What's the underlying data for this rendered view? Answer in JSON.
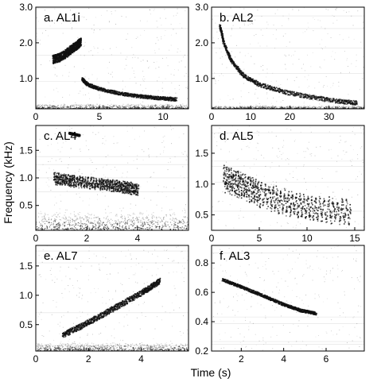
{
  "figure": {
    "ylabel": "Frequency (kHz)",
    "xlabel": "Time (s)"
  },
  "panels": [
    {
      "label": "a. AL1i",
      "xticks": [
        "0",
        "5",
        "10"
      ],
      "xtick_values": [
        0,
        5,
        10
      ],
      "yticks": [
        "1.0",
        "2.0",
        "3.0"
      ],
      "ytick_values": [
        1.0,
        2.0,
        3.0
      ],
      "xlim": [
        0,
        12
      ],
      "ylim": [
        0.15,
        3.0
      ],
      "traces": [
        {
          "kind": "tonal",
          "points": [
            [
              1.3,
              1.55
            ],
            [
              1.8,
              1.6
            ],
            [
              2.3,
              1.7
            ],
            [
              2.8,
              1.85
            ],
            [
              3.2,
              1.95
            ],
            [
              3.5,
              2.05
            ]
          ],
          "width": 0.3
        },
        {
          "kind": "tonal",
          "points": [
            [
              3.6,
              1.0
            ],
            [
              4.0,
              0.85
            ],
            [
              5.0,
              0.72
            ],
            [
              6.5,
              0.6
            ],
            [
              8.0,
              0.52
            ],
            [
              9.5,
              0.47
            ],
            [
              11.0,
              0.43
            ]
          ],
          "width": 0.12
        }
      ],
      "noise_band": [
        0.15,
        0.3
      ]
    },
    {
      "label": "b. AL2",
      "xticks": [
        "0",
        "10",
        "20",
        "30"
      ],
      "xtick_values": [
        0,
        10,
        20,
        30
      ],
      "yticks": [
        "1.0",
        "2.0",
        "3.0"
      ],
      "ytick_values": [
        1.0,
        2.0,
        3.0
      ],
      "xlim": [
        0,
        39
      ],
      "ylim": [
        0.15,
        3.0
      ],
      "traces": [
        {
          "kind": "tonal",
          "points": [
            [
              2,
              2.5
            ],
            [
              3,
              2.0
            ],
            [
              5,
              1.5
            ],
            [
              8,
              1.1
            ],
            [
              12,
              0.85
            ],
            [
              18,
              0.65
            ],
            [
              25,
              0.5
            ],
            [
              32,
              0.38
            ],
            [
              37,
              0.33
            ]
          ],
          "width": 0.15
        }
      ],
      "noise_band": [
        0.15,
        0.25
      ]
    },
    {
      "label": "c. AL4",
      "xticks": [
        "0",
        "2",
        "4"
      ],
      "xtick_values": [
        0,
        2,
        4
      ],
      "yticks": [
        "0.5",
        "1.0",
        "1.5"
      ],
      "ytick_values": [
        0.5,
        1.0,
        1.5
      ],
      "xlim": [
        0,
        6
      ],
      "ylim": [
        0.05,
        1.95
      ],
      "traces": [
        {
          "kind": "pulsed",
          "points": [
            [
              0.7,
              1.0
            ],
            [
              1.5,
              0.95
            ],
            [
              2.5,
              0.9
            ],
            [
              3.3,
              0.85
            ],
            [
              4.0,
              0.8
            ]
          ],
          "width": 0.15
        },
        {
          "kind": "tonal",
          "points": [
            [
              1.3,
              1.82
            ],
            [
              1.7,
              1.78
            ]
          ],
          "width": 0.04
        }
      ],
      "noise_band": [
        0.05,
        0.4
      ]
    },
    {
      "label": "d. AL5",
      "xticks": [
        "0",
        "5",
        "10",
        "15"
      ],
      "xtick_values": [
        0,
        5,
        10,
        15
      ],
      "yticks": [
        "0.5",
        "1.0",
        "1.5"
      ],
      "ytick_values": [
        0.5,
        1.0,
        1.5
      ],
      "xlim": [
        0,
        16
      ],
      "ylim": [
        0.25,
        1.95
      ],
      "traces": [
        {
          "kind": "pulsed",
          "points": [
            [
              1.2,
              1.1
            ],
            [
              3,
              1.0
            ],
            [
              5,
              0.85
            ],
            [
              8,
              0.7
            ],
            [
              11,
              0.6
            ],
            [
              14.5,
              0.55
            ]
          ],
          "width": 0.3
        }
      ],
      "noise_band": null
    },
    {
      "label": "e. AL7",
      "xticks": [
        "0",
        "2",
        "4"
      ],
      "xtick_values": [
        0,
        2,
        4
      ],
      "yticks": [
        "0.5",
        "1.0",
        "1.5"
      ],
      "ytick_values": [
        0.5,
        1.0,
        1.5
      ],
      "xlim": [
        0,
        5.8
      ],
      "ylim": [
        0.05,
        1.85
      ],
      "traces": [
        {
          "kind": "tonal",
          "points": [
            [
              1.0,
              0.33
            ],
            [
              2.0,
              0.55
            ],
            [
              3.0,
              0.8
            ],
            [
              4.0,
              1.05
            ],
            [
              4.7,
              1.25
            ]
          ],
          "width": 0.12
        }
      ],
      "noise_band": [
        0.05,
        0.2
      ]
    },
    {
      "label": "f. AL3",
      "xticks": [
        "2",
        "4",
        "6"
      ],
      "xtick_values": [
        2,
        4,
        6
      ],
      "yticks": [
        "0.2",
        "0.4",
        "0.6",
        "0.8"
      ],
      "ytick_values": [
        0.2,
        0.4,
        0.6,
        0.8
      ],
      "xlim": [
        0.6,
        7.8
      ],
      "ylim": [
        0.2,
        0.92
      ],
      "traces": [
        {
          "kind": "tonal",
          "points": [
            [
              1.1,
              0.69
            ],
            [
              2.0,
              0.64
            ],
            [
              3.0,
              0.58
            ],
            [
              4.0,
              0.52
            ],
            [
              4.8,
              0.48
            ],
            [
              5.5,
              0.46
            ]
          ],
          "width": 0.025
        }
      ],
      "noise_band": null
    }
  ]
}
